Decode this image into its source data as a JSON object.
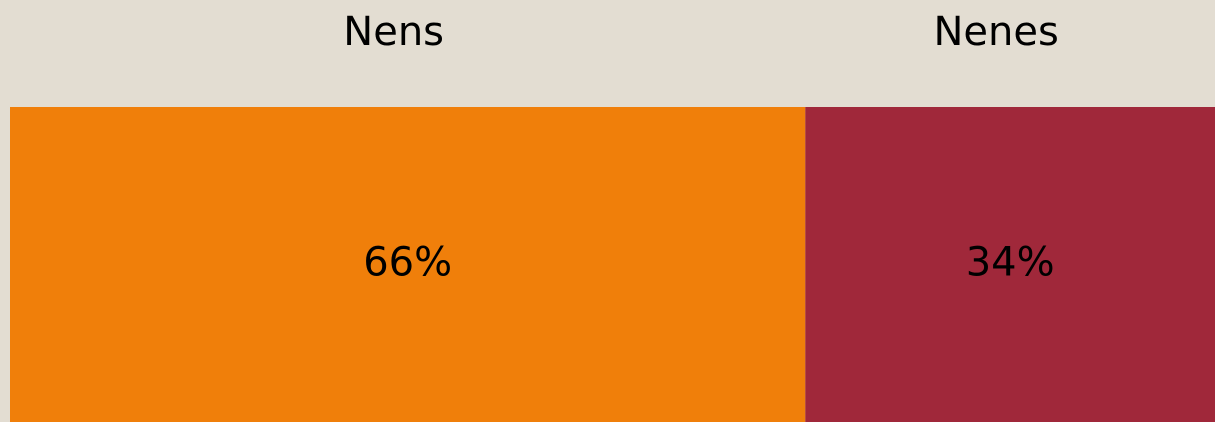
{
  "chart_data": {
    "type": "bar",
    "orientation": "horizontal",
    "stacked": true,
    "categories": [
      null
    ],
    "series": [
      {
        "name": "Nens",
        "color": "#f07f0a",
        "values": [
          66
        ],
        "value_labels": [
          "66%"
        ]
      },
      {
        "name": "Nenes",
        "color": "#a0283a",
        "values": [
          34
        ],
        "value_labels": [
          "34%"
        ]
      }
    ]
  }
}
